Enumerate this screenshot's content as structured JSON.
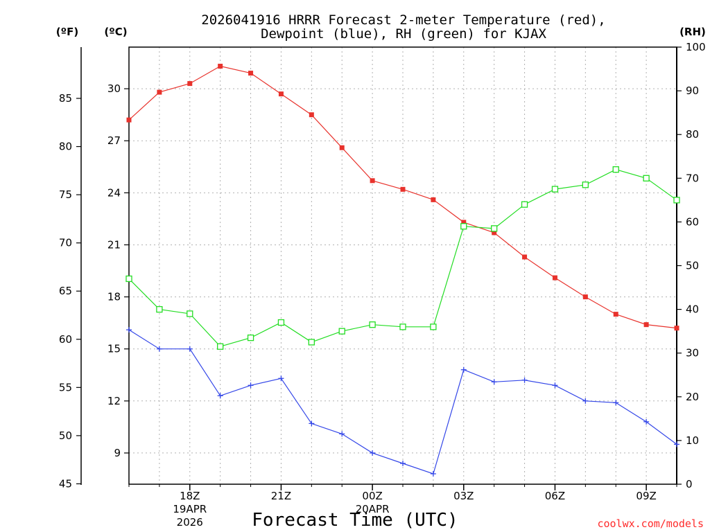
{
  "chart_data": {
    "type": "line",
    "title": "2026041916 HRRR Forecast 2-meter Temperature (red),",
    "subtitle": "Dewpoint (blue), RH (green) for KJAX",
    "xlabel": "Forecast Time (UTC)",
    "watermark": "coolwx.com/models",
    "units": {
      "fahrenheit": "(ºF)",
      "celsius": "(ºC)",
      "rh": "(RH)"
    },
    "x": [
      16,
      17,
      18,
      19,
      20,
      21,
      22,
      23,
      24,
      25,
      26,
      27,
      28,
      29,
      30,
      31,
      32,
      33,
      34
    ],
    "xlim": [
      16,
      34
    ],
    "x_ticks": [
      {
        "x": 18,
        "label": "18Z",
        "sub": [
          "19APR",
          "2026"
        ]
      },
      {
        "x": 21,
        "label": "21Z",
        "sub": []
      },
      {
        "x": 24,
        "label": "00Z",
        "sub": [
          "20APR"
        ]
      },
      {
        "x": 27,
        "label": "03Z",
        "sub": []
      },
      {
        "x": 30,
        "label": "06Z",
        "sub": []
      },
      {
        "x": 33,
        "label": "09Z",
        "sub": []
      }
    ],
    "celsius_axis": {
      "lim": [
        7.2,
        32.4
      ],
      "ticks": [
        "9",
        "12",
        "15",
        "18",
        "21",
        "24",
        "27",
        "30"
      ]
    },
    "fahrenheit_axis": {
      "lim": [
        44.96,
        90.32
      ],
      "ticks": [
        "45",
        "50",
        "55",
        "60",
        "65",
        "70",
        "75",
        "80",
        "85"
      ]
    },
    "rh_axis": {
      "lim": [
        0,
        100
      ],
      "ticks": [
        "0",
        "10",
        "20",
        "30",
        "40",
        "50",
        "60",
        "70",
        "80",
        "90",
        "100"
      ]
    },
    "series": [
      {
        "name": "Temperature",
        "color": "#e8322c",
        "axis": "celsius",
        "marker": "filled-square",
        "values": [
          28.2,
          29.8,
          30.3,
          31.3,
          30.9,
          29.7,
          28.5,
          26.6,
          24.7,
          24.2,
          23.6,
          22.3,
          21.7,
          20.3,
          19.1,
          18.0,
          17.0,
          16.4,
          16.2
        ]
      },
      {
        "name": "Dewpoint",
        "color": "#3346e8",
        "axis": "celsius",
        "marker": "plus",
        "values": [
          16.1,
          15.0,
          15.0,
          12.3,
          12.9,
          13.3,
          10.7,
          10.1,
          9.0,
          8.4,
          7.8,
          13.8,
          13.1,
          13.2,
          12.9,
          12.0,
          11.9,
          10.8,
          9.5
        ]
      },
      {
        "name": "RH",
        "color": "#22dd22",
        "axis": "rh",
        "marker": "open-square",
        "values": [
          47,
          40,
          39,
          31.5,
          33.5,
          37,
          32.5,
          35,
          36.5,
          36,
          36,
          59,
          58.5,
          64,
          67.5,
          68.5,
          72,
          70,
          65
        ]
      }
    ]
  }
}
